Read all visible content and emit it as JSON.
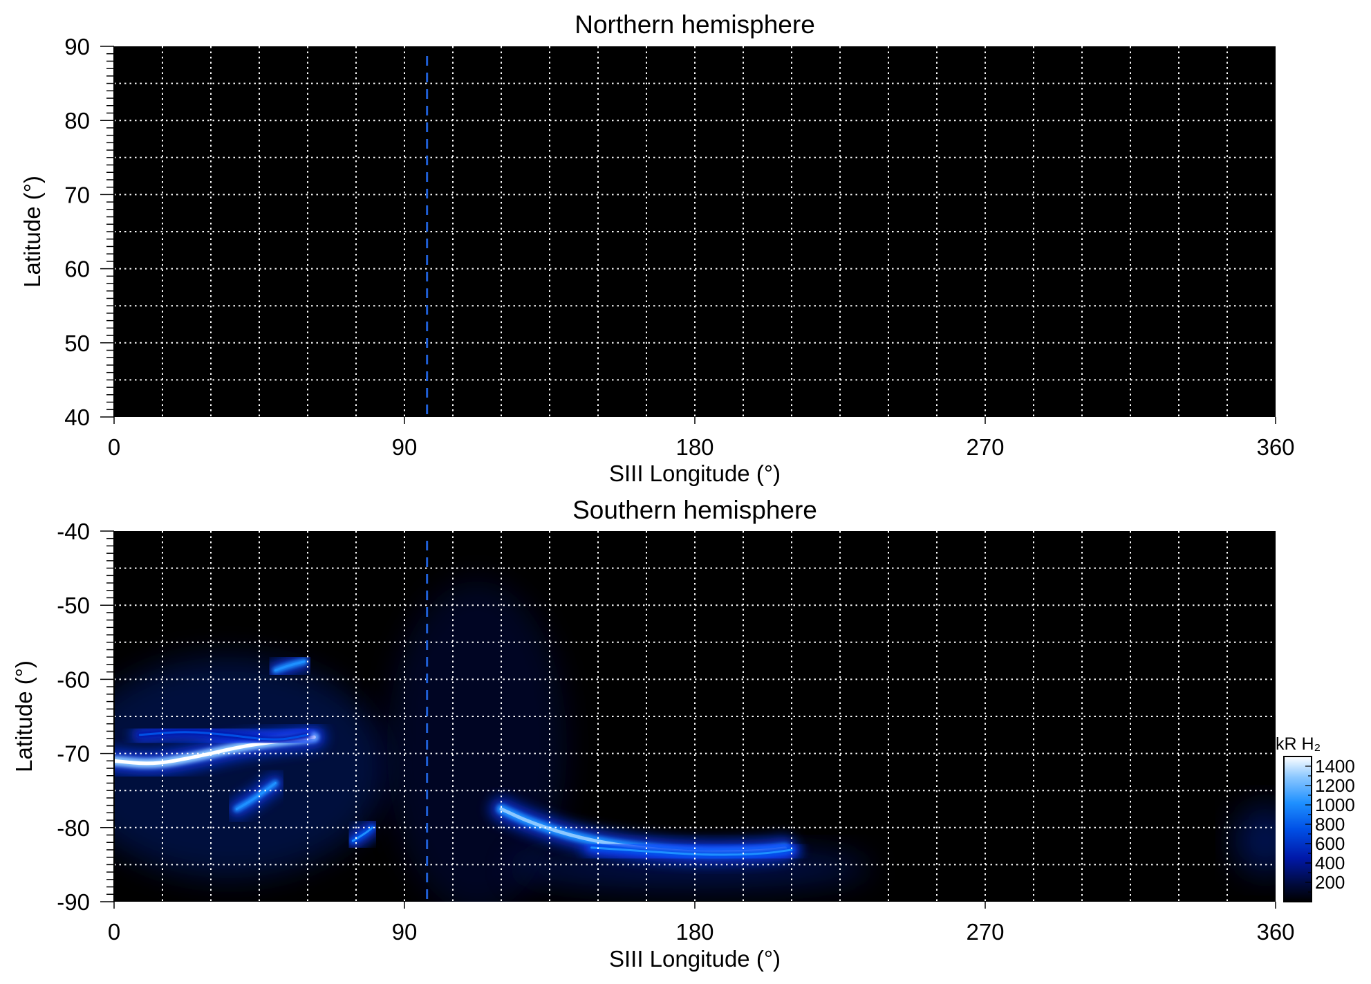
{
  "chart_data": [
    {
      "type": "heatmap",
      "title": "Northern hemisphere",
      "xlabel": "SIII Longitude (°)",
      "ylabel": "Latitude (°)",
      "xlim": [
        0,
        360
      ],
      "ylim": [
        40,
        90
      ],
      "xticks": [
        "0",
        "90",
        "180",
        "270",
        "360"
      ],
      "yticks": [
        "90",
        "80",
        "70",
        "60",
        "50",
        "40"
      ],
      "grid": true,
      "reference_line_longitude": 97,
      "emission_features": []
    },
    {
      "type": "heatmap",
      "title": "Southern hemisphere",
      "xlabel": "SIII Longitude (°)",
      "ylabel": "Latitude (°)",
      "xlim": [
        0,
        360
      ],
      "ylim": [
        -90,
        -40
      ],
      "xticks": [
        "0",
        "90",
        "180",
        "270",
        "360"
      ],
      "yticks": [
        "-40",
        "-50",
        "-60",
        "-70",
        "-80",
        "-90"
      ],
      "grid": true,
      "reference_line_longitude": 97,
      "emission_features": [
        {
          "lon": [
            0,
            12,
            25,
            40,
            52,
            62
          ],
          "lat": [
            -71,
            -71.5,
            -70.5,
            -69,
            -68.3,
            -67.8
          ],
          "peak_kR": 1450
        },
        {
          "lon": [
            8,
            22,
            36,
            50,
            60
          ],
          "lat": [
            -67.5,
            -67,
            -67.5,
            -68.3,
            -67.5
          ],
          "peak_kR": 700
        },
        {
          "lon": [
            50,
            53,
            57,
            59
          ],
          "lat": [
            -58.8,
            -58.3,
            -57.8,
            -57.6
          ],
          "peak_kR": 1100
        },
        {
          "lon": [
            38,
            42,
            46,
            50
          ],
          "lat": [
            -77.5,
            -76.5,
            -75.3,
            -74
          ],
          "peak_kR": 1100
        },
        {
          "lon": [
            74,
            77,
            79,
            80
          ],
          "lat": [
            -81.8,
            -81,
            -80.4,
            -80
          ],
          "peak_kR": 950
        },
        {
          "lon": [
            120,
            130,
            145,
            160,
            180,
            200,
            208
          ],
          "lat": [
            -77.5,
            -79.5,
            -81.5,
            -82.6,
            -83.4,
            -83.2,
            -82.8
          ],
          "peak_kR": 1350
        },
        {
          "lon": [
            148,
            165,
            182,
            200,
            210
          ],
          "lat": [
            -82.7,
            -83.2,
            -83.7,
            -83.6,
            -83
          ],
          "peak_kR": 900
        }
      ],
      "colorbar": {
        "label": "kR H₂",
        "range": [
          0,
          1500
        ],
        "ticks": [
          "1400",
          "1200",
          "1000",
          "800",
          "600",
          "400",
          "200"
        ]
      }
    }
  ],
  "colors": {
    "background": "#000000",
    "grid": "#ffffff",
    "reference_line": "#1f5fd6",
    "colormap": [
      "#000000",
      "#000a3c",
      "#0018a8",
      "#0050e6",
      "#1e90ff",
      "#8cc8ff",
      "#ffffff"
    ]
  }
}
